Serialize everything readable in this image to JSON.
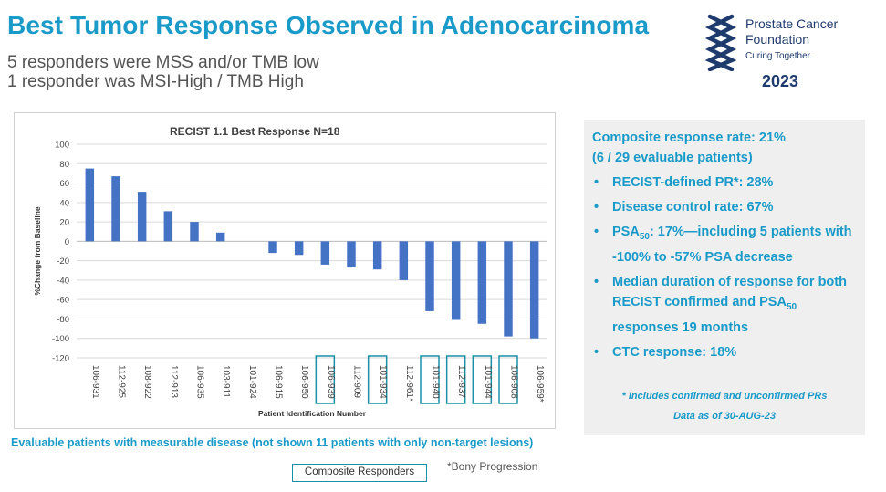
{
  "header": {
    "title": "Best Tumor Response Observed in Adenocarcinoma",
    "subtitle_line1": "5 responders were MSS and/or TMB low",
    "subtitle_line2": "1 responder was MSI-High / TMB High"
  },
  "logo": {
    "line1": "Prostate Cancer",
    "line2": "Foundation",
    "tagline": "Curing Together.",
    "year": "2023",
    "color": "#1f3b6e"
  },
  "colors": {
    "accent": "#1a9ac9",
    "bar": "#4472c4",
    "responder_box": "#1a8fa8",
    "panel_bg": "#efefef"
  },
  "chart_data": {
    "type": "bar",
    "title": "RECIST 1.1 Best Response N=18",
    "xlabel": "Patient Identification Number",
    "ylabel": "%Change from Baseline",
    "ylim": [
      -120,
      100
    ],
    "yticks": [
      100,
      80,
      60,
      40,
      20,
      0,
      -20,
      -40,
      -60,
      -80,
      -100,
      -120
    ],
    "grid": true,
    "categories": [
      "106-931",
      "112-925",
      "108-922",
      "112-913",
      "106-935",
      "103-911",
      "101-924",
      "106-915",
      "106-950",
      "106-939",
      "112-909",
      "101-934",
      "112-961*",
      "101-940",
      "112-937",
      "101-944",
      "106-908",
      "106-959*"
    ],
    "values": [
      75,
      67,
      51,
      31,
      20,
      9,
      0,
      -12,
      -14,
      -24,
      -27,
      -29,
      -40,
      -72,
      -81,
      -85,
      -98,
      -100
    ],
    "composite_responders": [
      "106-939",
      "101-934",
      "101-940",
      "112-937",
      "101-944",
      "106-908"
    ]
  },
  "footnotes": {
    "evaluable": "Evaluable patients with measurable disease (not shown 11 patients with only non-target lesions)",
    "legend_label": "Composite Responders",
    "bony": "*Bony Progression"
  },
  "panel": {
    "headline1": "Composite response rate: 21%",
    "headline2": "(6 / 29 evaluable patients)",
    "bullet_char": "•",
    "item1": "RECIST-defined PR*: 28%",
    "item2": "Disease control rate: 67%",
    "item3_a": "PSA",
    "item3_sub": "50",
    "item3_b": ": 17%—including 5 patients with -100% to -57% PSA decrease",
    "item4_a": "Median duration of response for both RECIST confirmed and PSA",
    "item4_sub": "50",
    "item4_b": " responses 19 months",
    "item5": "CTC response: 18%",
    "note1": "* Includes confirmed and unconfirmed PRs",
    "note2": "Data as of 30-AUG-23"
  }
}
